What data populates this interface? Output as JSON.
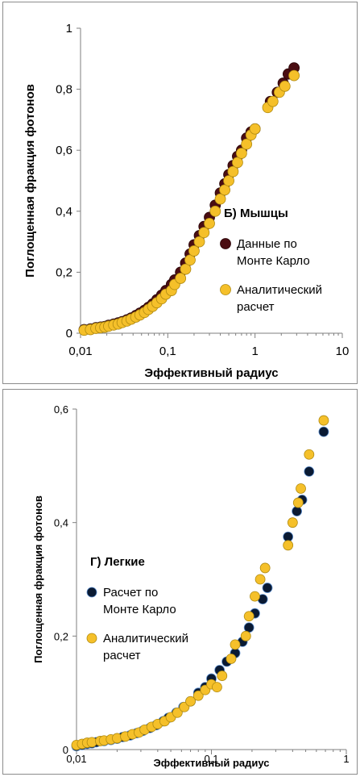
{
  "chart_data": [
    {
      "type": "scatter",
      "panel_title": "Б) Мышцы",
      "xlabel": "Эффективный радиус",
      "ylabel": "Поглощенная фракция фотонов",
      "x_scale": "log",
      "xlim": [
        0.01,
        10
      ],
      "ylim": [
        0,
        1
      ],
      "x_ticks": [
        "0,01",
        "0,1",
        "1",
        "10"
      ],
      "y_ticks": [
        "0",
        "0,2",
        "0,4",
        "0,6",
        "0,8",
        "1"
      ],
      "grid": false,
      "legend_position": "right",
      "series": [
        {
          "name": "Данные по Монте Карло",
          "color": "#4a0d12",
          "points": [
            [
              0.011,
              0.012
            ],
            [
              0.013,
              0.014
            ],
            [
              0.015,
              0.018
            ],
            [
              0.017,
              0.02
            ],
            [
              0.019,
              0.022
            ],
            [
              0.021,
              0.026
            ],
            [
              0.024,
              0.03
            ],
            [
              0.027,
              0.034
            ],
            [
              0.03,
              0.038
            ],
            [
              0.034,
              0.044
            ],
            [
              0.038,
              0.05
            ],
            [
              0.043,
              0.058
            ],
            [
              0.048,
              0.066
            ],
            [
              0.054,
              0.075
            ],
            [
              0.06,
              0.085
            ],
            [
              0.067,
              0.096
            ],
            [
              0.075,
              0.11
            ],
            [
              0.085,
              0.125
            ],
            [
              0.095,
              0.14
            ],
            [
              0.11,
              0.16
            ],
            [
              0.12,
              0.175
            ],
            [
              0.14,
              0.2
            ],
            [
              0.16,
              0.23
            ],
            [
              0.18,
              0.26
            ],
            [
              0.2,
              0.29
            ],
            [
              0.23,
              0.32
            ],
            [
              0.26,
              0.35
            ],
            [
              0.3,
              0.38
            ],
            [
              0.35,
              0.42
            ],
            [
              0.4,
              0.46
            ],
            [
              0.45,
              0.49
            ],
            [
              0.5,
              0.52
            ],
            [
              0.56,
              0.55
            ],
            [
              0.63,
              0.58
            ],
            [
              0.7,
              0.6
            ],
            [
              0.8,
              0.64
            ],
            [
              0.9,
              0.66
            ],
            [
              1.0,
              0.67
            ],
            [
              1.5,
              0.76
            ],
            [
              1.8,
              0.79
            ],
            [
              2.1,
              0.82
            ],
            [
              2.4,
              0.85
            ],
            [
              2.8,
              0.87
            ]
          ]
        },
        {
          "name": "Аналитический расчет",
          "color": "#f5c02a",
          "points": [
            [
              0.011,
              0.01
            ],
            [
              0.013,
              0.012
            ],
            [
              0.015,
              0.016
            ],
            [
              0.017,
              0.018
            ],
            [
              0.019,
              0.02
            ],
            [
              0.021,
              0.023
            ],
            [
              0.024,
              0.027
            ],
            [
              0.027,
              0.03
            ],
            [
              0.03,
              0.035
            ],
            [
              0.034,
              0.04
            ],
            [
              0.038,
              0.046
            ],
            [
              0.043,
              0.053
            ],
            [
              0.048,
              0.06
            ],
            [
              0.054,
              0.068
            ],
            [
              0.06,
              0.078
            ],
            [
              0.067,
              0.088
            ],
            [
              0.075,
              0.1
            ],
            [
              0.085,
              0.113
            ],
            [
              0.095,
              0.128
            ],
            [
              0.11,
              0.14
            ],
            [
              0.12,
              0.16
            ],
            [
              0.14,
              0.18
            ],
            [
              0.16,
              0.21
            ],
            [
              0.18,
              0.24
            ],
            [
              0.2,
              0.27
            ],
            [
              0.23,
              0.3
            ],
            [
              0.26,
              0.33
            ],
            [
              0.3,
              0.36
            ],
            [
              0.35,
              0.4
            ],
            [
              0.4,
              0.44
            ],
            [
              0.45,
              0.47
            ],
            [
              0.5,
              0.5
            ],
            [
              0.56,
              0.53
            ],
            [
              0.63,
              0.56
            ],
            [
              0.7,
              0.59
            ],
            [
              0.8,
              0.62
            ],
            [
              0.9,
              0.65
            ],
            [
              1.0,
              0.67
            ],
            [
              1.4,
              0.74
            ],
            [
              1.6,
              0.76
            ],
            [
              1.9,
              0.79
            ],
            [
              2.2,
              0.81
            ],
            [
              2.8,
              0.845
            ]
          ]
        }
      ]
    },
    {
      "type": "scatter",
      "panel_title": "Г) Легкие",
      "xlabel": "Эффективный радиус",
      "ylabel": "Поглощенная фракция фотонов",
      "x_scale": "log",
      "xlim": [
        0.01,
        1
      ],
      "ylim": [
        0,
        0.6
      ],
      "x_ticks": [
        "0,01",
        "0,1",
        "1"
      ],
      "y_ticks": [
        "0",
        "0,2",
        "0,4",
        "0,6"
      ],
      "grid": false,
      "legend_position": "left",
      "series": [
        {
          "name": "Расчет по Монте Карло",
          "color": "#0a1a33",
          "points": [
            [
              0.01,
              0.006
            ],
            [
              0.011,
              0.008
            ],
            [
              0.012,
              0.01
            ],
            [
              0.013,
              0.011
            ],
            [
              0.014,
              0.013
            ],
            [
              0.016,
              0.015
            ],
            [
              0.018,
              0.017
            ],
            [
              0.02,
              0.019
            ],
            [
              0.022,
              0.022
            ],
            [
              0.025,
              0.025
            ],
            [
              0.028,
              0.029
            ],
            [
              0.031,
              0.033
            ],
            [
              0.035,
              0.038
            ],
            [
              0.039,
              0.043
            ],
            [
              0.044,
              0.05
            ],
            [
              0.048,
              0.056
            ],
            [
              0.055,
              0.065
            ],
            [
              0.062,
              0.075
            ],
            [
              0.07,
              0.085
            ],
            [
              0.08,
              0.1
            ],
            [
              0.09,
              0.11
            ],
            [
              0.1,
              0.125
            ],
            [
              0.115,
              0.14
            ],
            [
              0.13,
              0.155
            ],
            [
              0.15,
              0.17
            ],
            [
              0.17,
              0.19
            ],
            [
              0.19,
              0.215
            ],
            [
              0.21,
              0.24
            ],
            [
              0.24,
              0.265
            ],
            [
              0.26,
              0.285
            ],
            [
              0.37,
              0.375
            ],
            [
              0.43,
              0.42
            ],
            [
              0.47,
              0.44
            ],
            [
              0.53,
              0.49
            ],
            [
              0.68,
              0.56
            ]
          ]
        },
        {
          "name": "Аналитический расчет",
          "color": "#f5c02a",
          "points": [
            [
              0.01,
              0.008
            ],
            [
              0.011,
              0.01
            ],
            [
              0.012,
              0.012
            ],
            [
              0.013,
              0.013
            ],
            [
              0.015,
              0.015
            ],
            [
              0.016,
              0.016
            ],
            [
              0.018,
              0.018
            ],
            [
              0.02,
              0.02
            ],
            [
              0.023,
              0.023
            ],
            [
              0.026,
              0.027
            ],
            [
              0.029,
              0.03
            ],
            [
              0.032,
              0.035
            ],
            [
              0.036,
              0.04
            ],
            [
              0.04,
              0.045
            ],
            [
              0.045,
              0.05
            ],
            [
              0.05,
              0.057
            ],
            [
              0.056,
              0.065
            ],
            [
              0.063,
              0.075
            ],
            [
              0.07,
              0.085
            ],
            [
              0.08,
              0.095
            ],
            [
              0.09,
              0.105
            ],
            [
              0.1,
              0.115
            ],
            [
              0.11,
              0.11
            ],
            [
              0.12,
              0.13
            ],
            [
              0.14,
              0.16
            ],
            [
              0.15,
              0.185
            ],
            [
              0.18,
              0.2
            ],
            [
              0.19,
              0.235
            ],
            [
              0.21,
              0.27
            ],
            [
              0.23,
              0.3
            ],
            [
              0.25,
              0.32
            ],
            [
              0.37,
              0.36
            ],
            [
              0.4,
              0.4
            ],
            [
              0.44,
              0.435
            ],
            [
              0.46,
              0.46
            ],
            [
              0.53,
              0.52
            ],
            [
              0.68,
              0.58
            ]
          ]
        }
      ]
    }
  ]
}
